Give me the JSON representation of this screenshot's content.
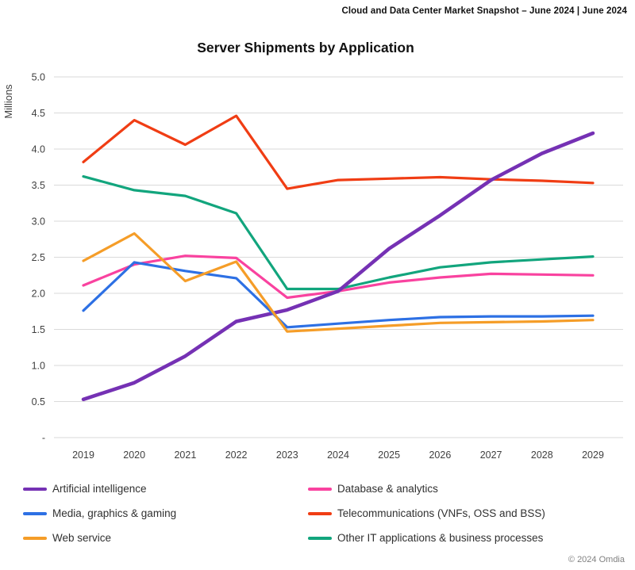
{
  "header": {
    "report_title": "Cloud and Data Center Market Snapshot – June 2024 | June 2024"
  },
  "footer": {
    "copyright": "© 2024 Omdia"
  },
  "colors": {
    "gridline": "#DADADA",
    "axis_text": "#3F3F3F",
    "title_text": "#111111",
    "footer_text": "#808080"
  },
  "chart_data": {
    "type": "line",
    "title": "Server Shipments by Application",
    "xlabel": "",
    "ylabel": "Millions",
    "ylim": [
      0,
      5.0
    ],
    "y_tick_step": 0.5,
    "y_tick_labels": [
      "5.0",
      "4.5",
      "4.0",
      "3.5",
      "3.0",
      "2.5",
      "2.0",
      "1.5",
      "1.0",
      "0.5",
      "-"
    ],
    "grid": "horizontal",
    "legend_position": "bottom-two-columns",
    "categories": [
      "2019",
      "2020",
      "2021",
      "2022",
      "2023",
      "2024",
      "2025",
      "2026",
      "2027",
      "2028",
      "2029"
    ],
    "series": [
      {
        "name": "Artificial intelligence",
        "color": "#7531B4",
        "thick": true,
        "values": [
          0.53,
          0.76,
          1.13,
          1.61,
          1.77,
          2.03,
          2.62,
          3.08,
          3.57,
          3.94,
          4.22
        ]
      },
      {
        "name": "Media, graphics & gaming",
        "color": "#2D70E4",
        "thick": false,
        "values": [
          1.76,
          2.43,
          2.31,
          2.21,
          1.53,
          1.58,
          1.63,
          1.67,
          1.68,
          1.68,
          1.69
        ]
      },
      {
        "name": "Web service",
        "color": "#F59D28",
        "thick": false,
        "values": [
          2.45,
          2.83,
          2.17,
          2.44,
          1.47,
          1.51,
          1.55,
          1.59,
          1.6,
          1.61,
          1.63
        ]
      },
      {
        "name": "Database & analytics",
        "color": "#F9429F",
        "thick": false,
        "values": [
          2.11,
          2.4,
          2.52,
          2.49,
          1.94,
          2.03,
          2.15,
          2.22,
          2.27,
          2.26,
          2.25
        ]
      },
      {
        "name": "Telecommunications (VNFs, OSS and BSS)",
        "color": "#F03D14",
        "thick": false,
        "values": [
          3.82,
          4.4,
          4.06,
          4.46,
          3.45,
          3.57,
          3.59,
          3.61,
          3.58,
          3.56,
          3.53
        ]
      },
      {
        "name": "Other IT applications & business processes",
        "color": "#12A57D",
        "thick": false,
        "values": [
          3.62,
          3.43,
          3.35,
          3.11,
          2.06,
          2.06,
          2.22,
          2.36,
          2.43,
          2.47,
          2.51
        ]
      }
    ],
    "z_order": [
      3,
      4,
      5,
      0,
      1,
      2
    ],
    "legend_columns": [
      [
        0,
        1,
        2
      ],
      [
        3,
        4,
        5
      ]
    ]
  }
}
